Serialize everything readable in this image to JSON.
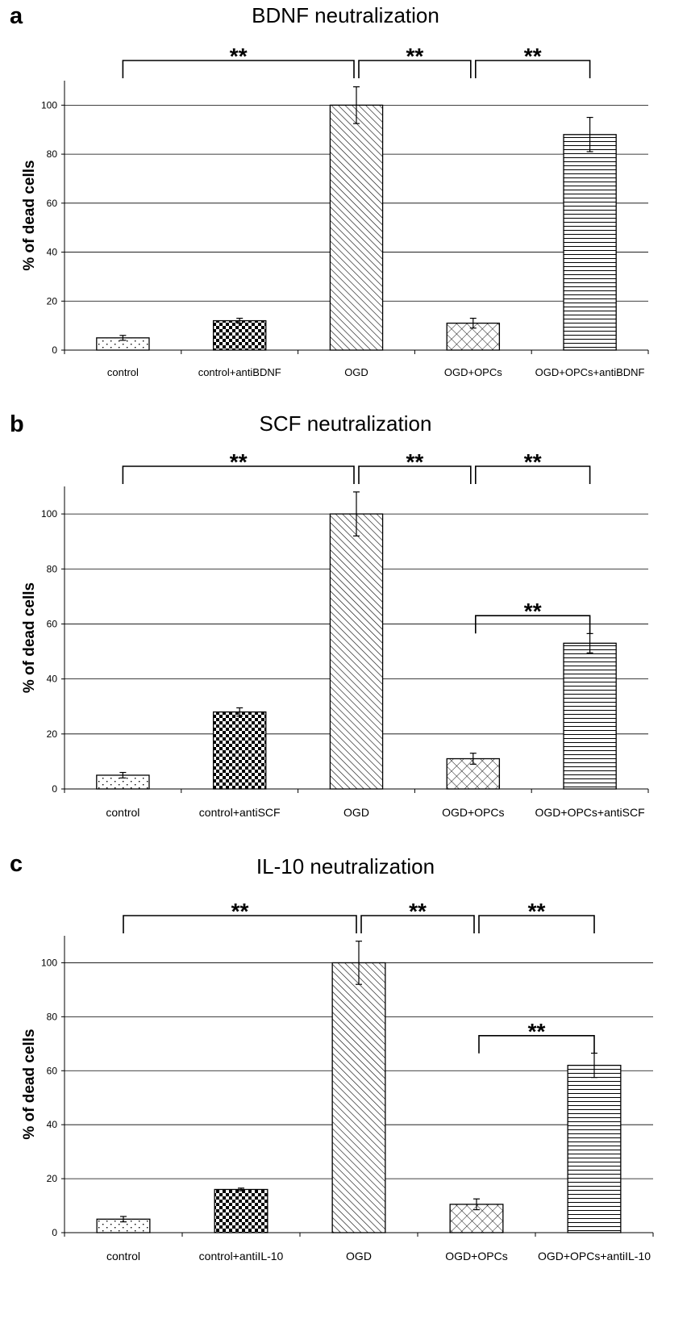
{
  "chart_data": [
    {
      "panel": "a",
      "title": "BDNF neutralization",
      "type": "bar",
      "ylabel": "% of dead cells",
      "ylim": [
        0,
        110
      ],
      "yticks": [
        0,
        20,
        40,
        60,
        80,
        100
      ],
      "grid": true,
      "categories": [
        "control",
        "control+antiBDNF",
        "OGD",
        "OGD+OPCs",
        "OGD+OPCs+antiBDNF"
      ],
      "values": [
        5,
        12,
        100,
        11,
        88
      ],
      "errors": [
        1,
        1,
        7.5,
        2,
        7
      ],
      "patterns": [
        "dots",
        "checker",
        "diagonal",
        "crosshatch",
        "horizontal"
      ],
      "significance": [
        {
          "from": 0,
          "to": 2,
          "label": "**"
        },
        {
          "from": 2,
          "to": 3,
          "label": "**"
        },
        {
          "from": 3,
          "to": 4,
          "label": "**"
        }
      ]
    },
    {
      "panel": "b",
      "title": "SCF neutralization",
      "type": "bar",
      "ylabel": "% of dead cells",
      "ylim": [
        0,
        110
      ],
      "yticks": [
        0,
        20,
        40,
        60,
        80,
        100
      ],
      "grid": true,
      "categories": [
        "control",
        "control+antiSCF",
        "OGD",
        "OGD+OPCs",
        "OGD+OPCs+antiSCF"
      ],
      "values": [
        5,
        28,
        100,
        11,
        53
      ],
      "errors": [
        1,
        1.5,
        8,
        2,
        3.5
      ],
      "patterns": [
        "dots",
        "checker",
        "diagonal",
        "crosshatch",
        "horizontal"
      ],
      "significance": [
        {
          "from": 0,
          "to": 2,
          "label": "**"
        },
        {
          "from": 2,
          "to": 3,
          "label": "**"
        },
        {
          "from": 3,
          "to": 4,
          "label": "**"
        },
        {
          "from": 3,
          "to": 4,
          "label": "**",
          "level": 63
        }
      ]
    },
    {
      "panel": "c",
      "title": "IL-10 neutralization",
      "type": "bar",
      "ylabel": "% of dead cells",
      "ylim": [
        0,
        110
      ],
      "yticks": [
        0,
        20,
        40,
        60,
        80,
        100
      ],
      "grid": true,
      "categories": [
        "control",
        "control+antiIL-10",
        "OGD",
        "OGD+OPCs",
        "OGD+OPCs+antiIL-10"
      ],
      "values": [
        5,
        16,
        100,
        10.5,
        62
      ],
      "errors": [
        1,
        0.5,
        8,
        2,
        4.5
      ],
      "patterns": [
        "dots",
        "checker",
        "diagonal",
        "crosshatch",
        "horizontal"
      ],
      "significance": [
        {
          "from": 0,
          "to": 2,
          "label": "**"
        },
        {
          "from": 2,
          "to": 3,
          "label": "**"
        },
        {
          "from": 3,
          "to": 4,
          "label": "**"
        },
        {
          "from": 3,
          "to": 4,
          "label": "**",
          "level": 73
        }
      ]
    }
  ]
}
